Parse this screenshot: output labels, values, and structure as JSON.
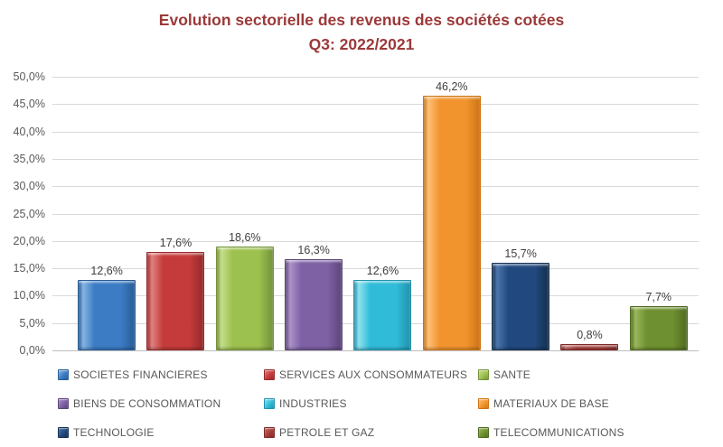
{
  "title": {
    "line1": "Evolution sectorielle des revenus des sociétés cotées",
    "line2": "Q3: 2022/2021",
    "color": "#9C3939"
  },
  "chart_data": {
    "type": "bar",
    "title": "Evolution sectorielle des revenus des sociétés cotées Q3: 2022/2021",
    "xlabel": "",
    "ylabel": "",
    "ylim": [
      0,
      50
    ],
    "ytick_step": 5,
    "yticks": [
      "50,0%",
      "45,0%",
      "40,0%",
      "35,0%",
      "30,0%",
      "25,0%",
      "20,0%",
      "15,0%",
      "10,0%",
      "5,0%",
      "0,0%"
    ],
    "grid": true,
    "legend_position": "bottom",
    "value_format": "french-percent-one-decimal",
    "categories": [
      "SOCIETES FINANCIERES",
      "SERVICES AUX CONSOMMATEURS",
      "SANTE",
      "BIENS DE CONSOMMATION",
      "INDUSTRIES",
      "MATERIAUX DE BASE",
      "TECHNOLOGIE",
      "PETROLE ET GAZ",
      "TELECOMMUNICATIONS"
    ],
    "values": [
      12.6,
      17.6,
      18.6,
      16.3,
      12.6,
      46.2,
      15.7,
      0.8,
      7.7
    ],
    "bars": [
      {
        "label": "SOCIETES FINANCIERES",
        "value": 12.6,
        "value_label": "12,6%",
        "color": "#3B7CC4",
        "color_light": "#85B4E2",
        "color_dark": "#295C97"
      },
      {
        "label": "SERVICES AUX CONSOMMATEURS",
        "value": 17.6,
        "value_label": "17,6%",
        "color": "#C53B3B",
        "color_light": "#E28080",
        "color_dark": "#96292B"
      },
      {
        "label": "SANTE",
        "value": 18.6,
        "value_label": "18,6%",
        "color": "#9DC14E",
        "color_light": "#C6DE8C",
        "color_dark": "#74923A"
      },
      {
        "label": "BIENS DE CONSOMMATION",
        "value": 16.3,
        "value_label": "16,3%",
        "color": "#7E60A5",
        "color_light": "#AC93C8",
        "color_dark": "#5C4579"
      },
      {
        "label": "INDUSTRIES",
        "value": 12.6,
        "value_label": "12,6%",
        "color": "#30BCD8",
        "color_light": "#8FE2EF",
        "color_dark": "#2292AC"
      },
      {
        "label": "MATERIAUX DE BASE",
        "value": 46.2,
        "value_label": "46,2%",
        "color": "#F2942E",
        "color_light": "#FCC178",
        "color_dark": "#CE7413"
      },
      {
        "label": "TECHNOLOGIE",
        "value": 15.7,
        "value_label": "15,7%",
        "color": "#21497F",
        "color_light": "#4C77AD",
        "color_dark": "#15304F"
      },
      {
        "label": "PETROLE ET GAZ",
        "value": 0.8,
        "value_label": "0,8%",
        "color": "#A43B38",
        "color_light": "#C9706A",
        "color_dark": "#7C2A28"
      },
      {
        "label": "TELECOMMUNICATIONS",
        "value": 7.7,
        "value_label": "7,7%",
        "color": "#6F9030",
        "color_light": "#9BB85C",
        "color_dark": "#4F6B20"
      }
    ],
    "colors": {
      "gridline": "#D9D9D9",
      "axis_line": "#BFBFBF",
      "tick_label": "#595959",
      "data_label": "#404040",
      "legend_label": "#595959",
      "background": "#FFFFFF"
    }
  }
}
